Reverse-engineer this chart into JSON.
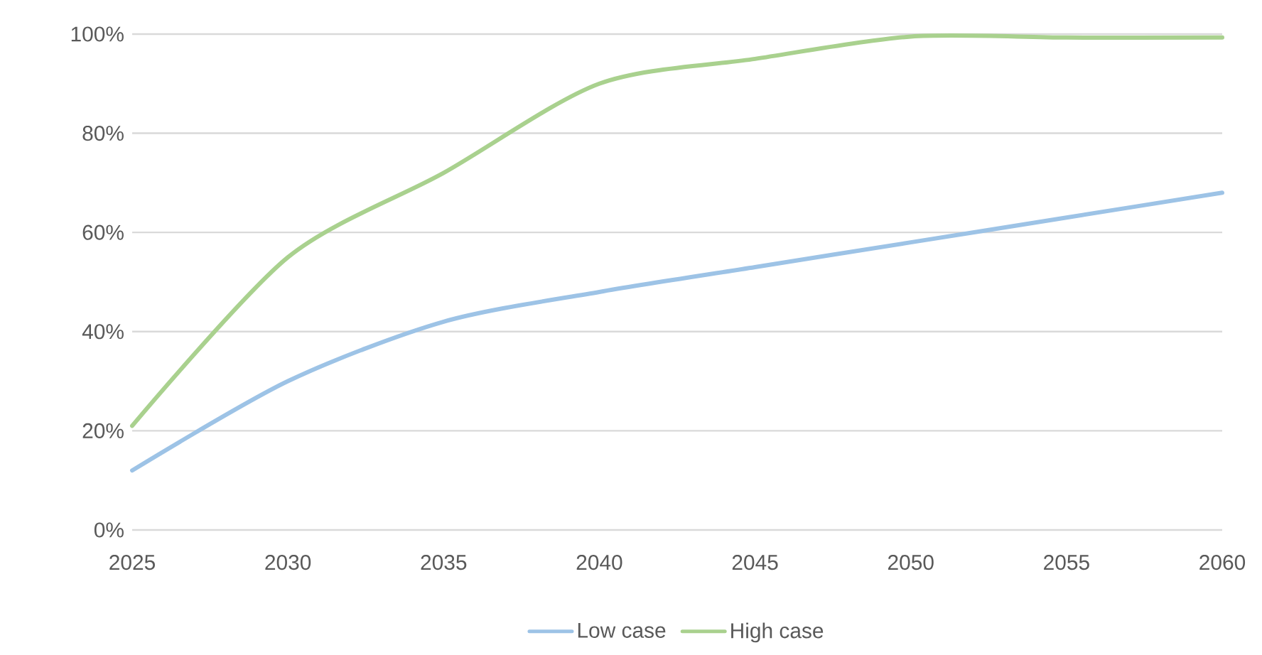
{
  "chart_data": {
    "type": "line",
    "x": [
      2025,
      2030,
      2035,
      2040,
      2045,
      2050,
      2055,
      2060
    ],
    "series": [
      {
        "name": "Low case",
        "color": "#9dc3e6",
        "values": [
          12,
          30,
          42,
          48,
          53,
          58,
          63,
          68
        ]
      },
      {
        "name": "High case",
        "color": "#a9d18e",
        "values": [
          21,
          55,
          72,
          90,
          95,
          99.5,
          99.3,
          99.3
        ]
      }
    ],
    "xlim": [
      2025,
      2060
    ],
    "xticks": [
      2025,
      2030,
      2035,
      2040,
      2045,
      2050,
      2055,
      2060
    ],
    "ylim": [
      0,
      100
    ],
    "yticks": [
      {
        "value": 0,
        "label": "0%"
      },
      {
        "value": 20,
        "label": "20%"
      },
      {
        "value": 40,
        "label": "40%"
      },
      {
        "value": 60,
        "label": "60%"
      },
      {
        "value": 80,
        "label": "80%"
      },
      {
        "value": 100,
        "label": "100%"
      }
    ],
    "grid": "y",
    "legend": "bottom",
    "marker": "none",
    "line_style": "solid"
  }
}
